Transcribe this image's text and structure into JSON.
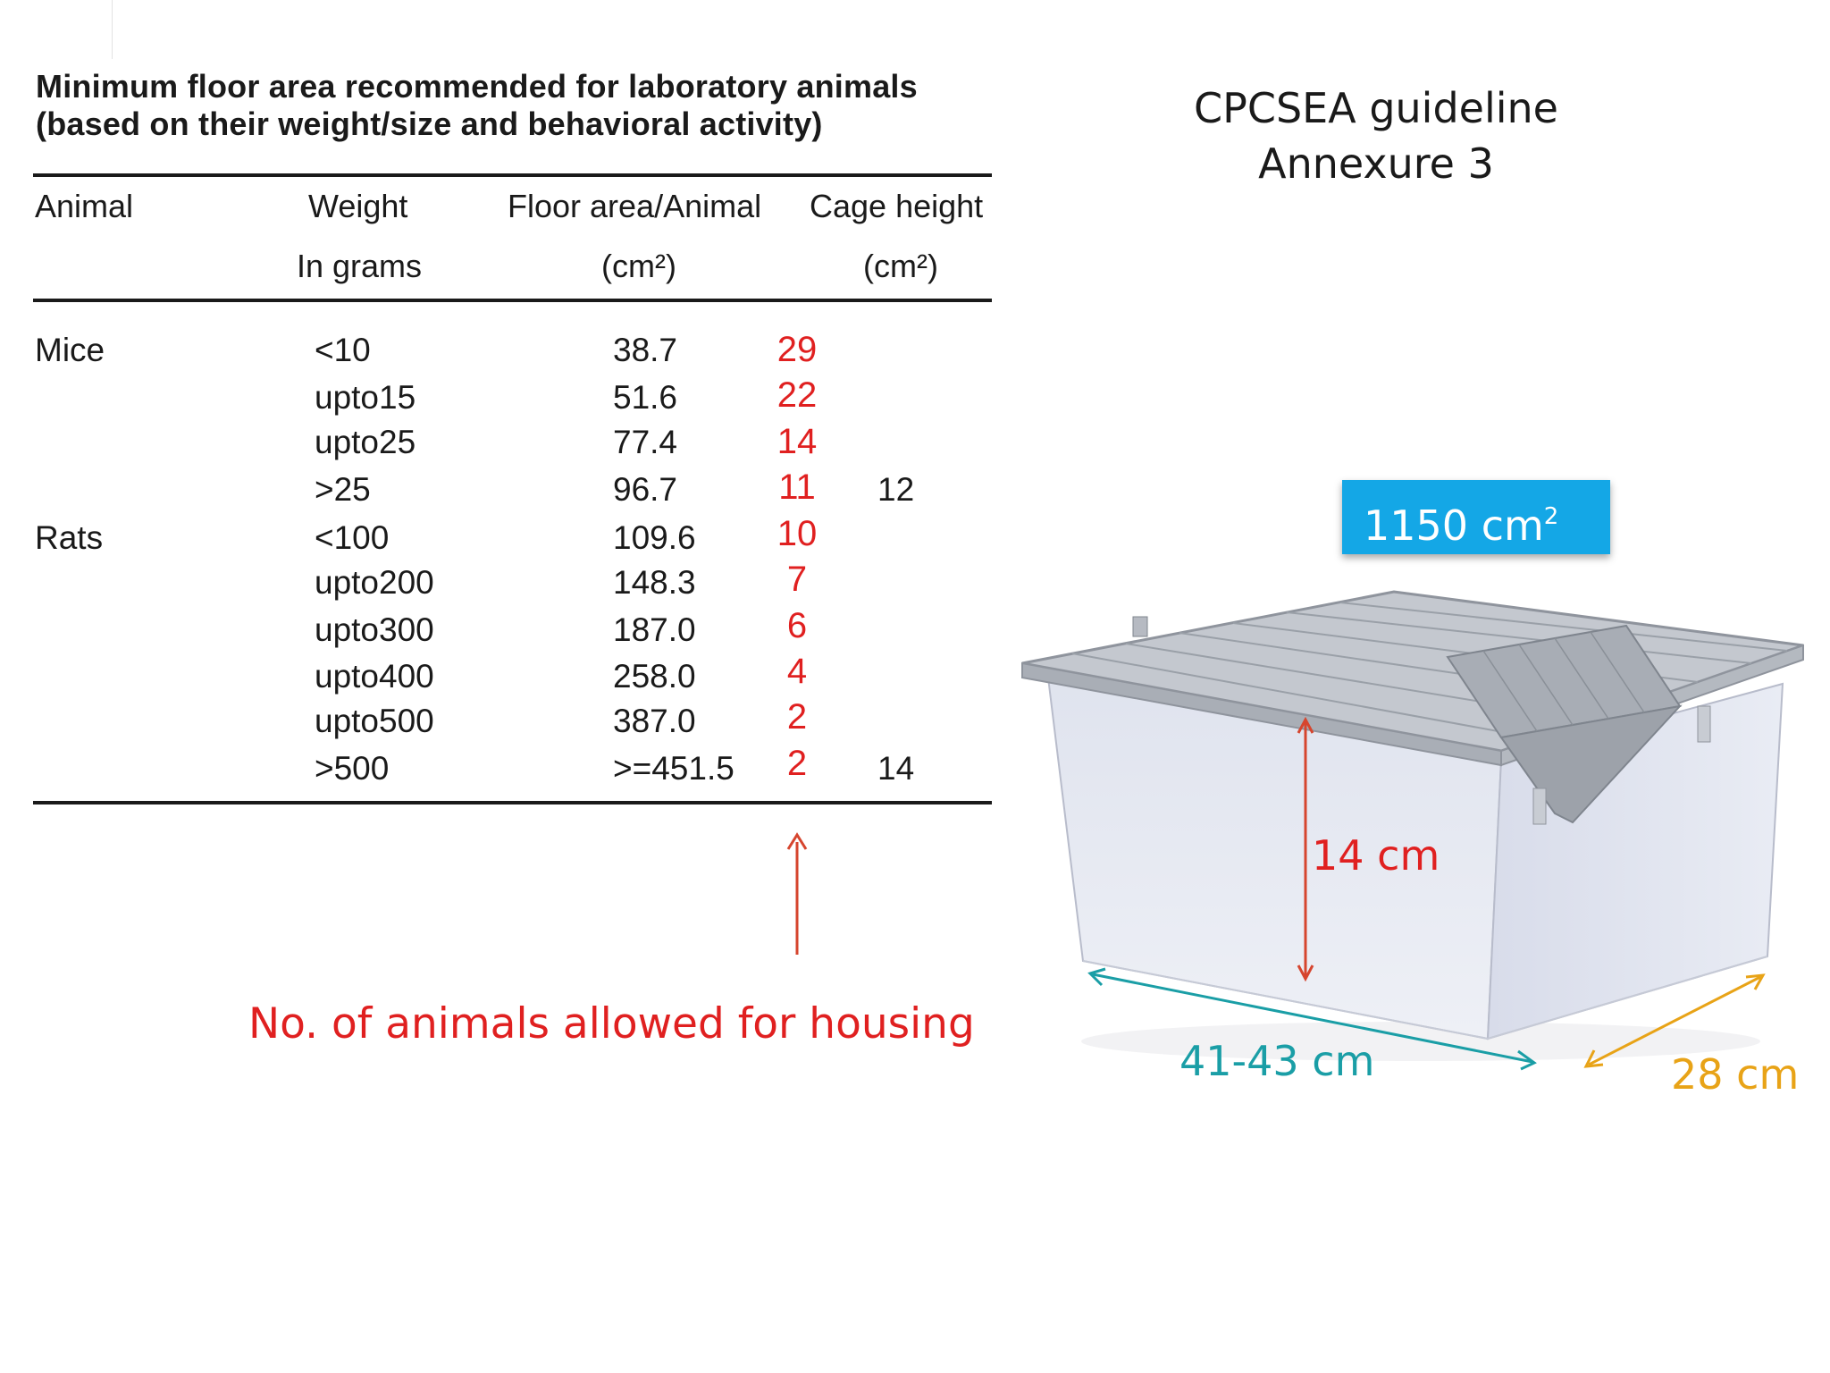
{
  "table": {
    "title_line1": "Minimum floor area recommended for laboratory animals",
    "title_line2": "(based on their weight/size and behavioral activity)",
    "headers": {
      "animal": "Animal",
      "weight": "Weight",
      "weight_unit": "In grams",
      "floor": "Floor area/Animal",
      "floor_unit": "(cm²)",
      "cage": "Cage height",
      "cage_unit": "(cm²)"
    },
    "rows": [
      {
        "animal": "Mice",
        "weight": "<10",
        "floor": "38.7",
        "count": "29",
        "cage": ""
      },
      {
        "animal": "",
        "weight": "upto15",
        "floor": "51.6",
        "count": "22",
        "cage": ""
      },
      {
        "animal": "",
        "weight": "upto25",
        "floor": "77.4",
        "count": "14",
        "cage": ""
      },
      {
        "animal": "",
        "weight": ">25",
        "floor": "96.7",
        "count": "11",
        "cage": "12"
      },
      {
        "animal": "Rats",
        "weight": "<100",
        "floor": "109.6",
        "count": "10",
        "cage": ""
      },
      {
        "animal": "",
        "weight": "upto200",
        "floor": "148.3",
        "count": "7",
        "cage": ""
      },
      {
        "animal": "",
        "weight": "upto300",
        "floor": "187.0",
        "count": "6",
        "cage": ""
      },
      {
        "animal": "",
        "weight": "upto400",
        "floor": "258.0",
        "count": "4",
        "cage": ""
      },
      {
        "animal": "",
        "weight": "upto500",
        "floor": "387.0",
        "count": "2",
        "cage": ""
      },
      {
        "animal": "",
        "weight": ">500",
        "floor": ">=451.5",
        "count": "2",
        "cage": "14"
      }
    ]
  },
  "guideline": {
    "line1": "CPCSEA guideline",
    "line2": "Annexure 3"
  },
  "area_badge": {
    "value": "1150 cm",
    "superscript": "2"
  },
  "caption": "No. of animals allowed for housing",
  "cage_dimensions": {
    "height": "14 cm",
    "length": "41-43 cm",
    "width": "28 cm"
  },
  "colors": {
    "red": "#e02020",
    "teal": "#1a9ea6",
    "orange": "#e8a317",
    "blue": "#14a7e6"
  }
}
